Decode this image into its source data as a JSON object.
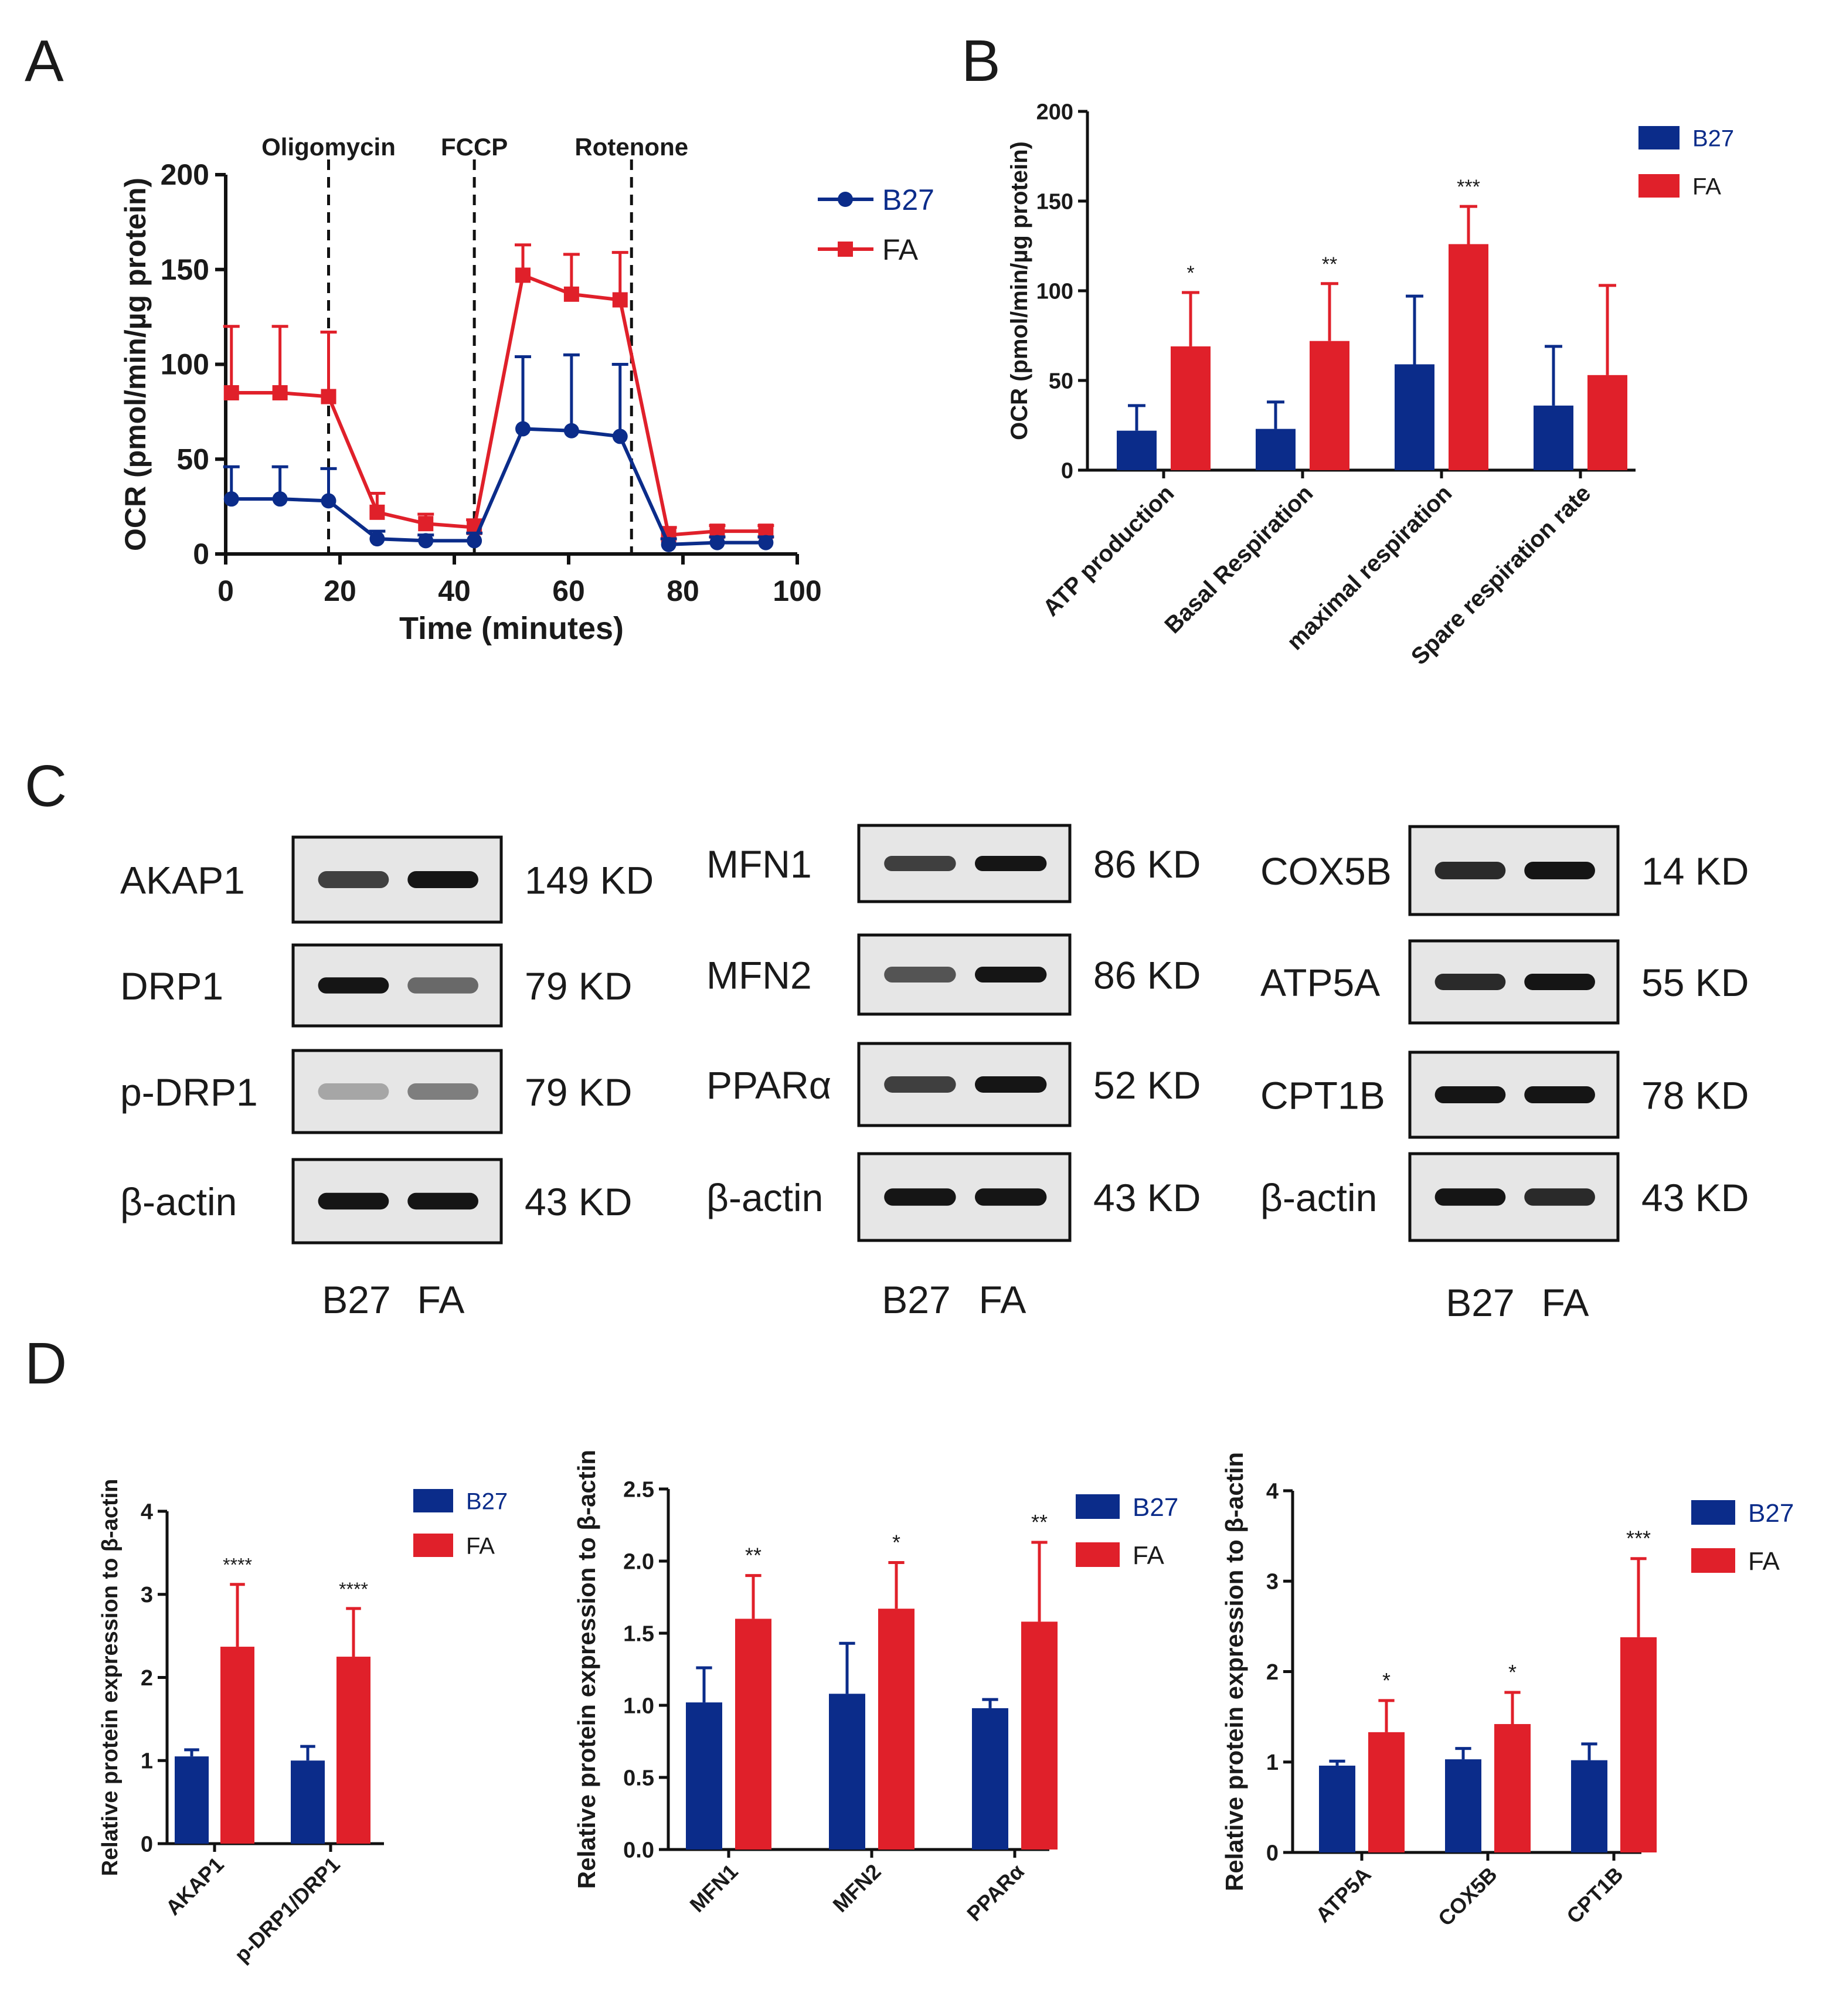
{
  "colors": {
    "b27": "#0b2c8a",
    "fa": "#e0202a",
    "axis": "#111111",
    "blot_bg": "#e6e6e6",
    "band": "#151515"
  },
  "panels": {
    "A": "A",
    "B": "B",
    "C": "C",
    "D": "D"
  },
  "chart_data": [
    {
      "id": "A",
      "type": "line",
      "ylabel": "OCR (pmol/min/µg  protein)",
      "xlabel": "Time (minutes)",
      "xlim": [
        0,
        100
      ],
      "ylim": [
        0,
        200
      ],
      "xticks": [
        "0",
        "20",
        "40",
        "60",
        "80",
        "100"
      ],
      "yticks": [
        "0",
        "50",
        "100",
        "150",
        "200"
      ],
      "annotations": [
        {
          "label": "Oligomycin",
          "x": 18
        },
        {
          "label": "FCCP",
          "x": 43.5
        },
        {
          "label": "Rotenone",
          "x": 71
        }
      ],
      "legend": [
        "B27",
        "FA"
      ],
      "series": [
        {
          "name": "B27",
          "x": [
            1,
            9.5,
            18,
            26.5,
            35,
            43.5,
            52,
            60.5,
            69,
            77.5,
            86,
            94.5
          ],
          "y": [
            29,
            29,
            28,
            8,
            7,
            7,
            66,
            65,
            62,
            5,
            6,
            6
          ],
          "err": [
            17,
            17,
            17,
            4,
            3,
            4,
            38,
            40,
            38,
            3,
            3,
            3
          ]
        },
        {
          "name": "FA",
          "x": [
            1,
            9.5,
            18,
            26.5,
            35,
            43.5,
            52,
            60.5,
            69,
            77.5,
            86,
            94.5
          ],
          "y": [
            85,
            85,
            83,
            22,
            16,
            14,
            147,
            137,
            134,
            10,
            12,
            12
          ],
          "err": [
            35,
            35,
            34,
            10,
            5,
            4,
            16,
            21,
            25,
            4,
            3,
            3
          ]
        }
      ]
    },
    {
      "id": "B",
      "type": "bar",
      "ylabel": "OCR (pmol/min/µg protein)",
      "ylim": [
        0,
        200
      ],
      "yticks": [
        "0",
        "50",
        "100",
        "150",
        "200"
      ],
      "categories": [
        "ATP production",
        "Basal Respiration",
        "maximal respiration",
        "Spare respiration rate"
      ],
      "legend": [
        "B27",
        "FA"
      ],
      "series": [
        {
          "name": "B27",
          "values": [
            22,
            23,
            59,
            36
          ],
          "err": [
            14,
            15,
            38,
            33
          ]
        },
        {
          "name": "FA",
          "values": [
            69,
            72,
            126,
            53
          ],
          "err": [
            30,
            32,
            21,
            50
          ]
        }
      ],
      "significance": [
        "*",
        "**",
        "***",
        ""
      ]
    },
    {
      "id": "D1",
      "type": "bar",
      "ylabel": "Relative protein expression to β-actin",
      "ylim": [
        0,
        4
      ],
      "yticks": [
        "0",
        "1",
        "2",
        "3",
        "4"
      ],
      "categories": [
        "AKAP1",
        "p-DRP1/DRP1"
      ],
      "legend": [
        "B27",
        "FA"
      ],
      "series": [
        {
          "name": "B27",
          "values": [
            1.05,
            1.0
          ],
          "err": [
            0.08,
            0.17
          ]
        },
        {
          "name": "FA",
          "values": [
            2.37,
            2.25
          ],
          "err": [
            0.75,
            0.58
          ]
        }
      ],
      "significance": [
        "****",
        "****"
      ]
    },
    {
      "id": "D2",
      "type": "bar",
      "ylabel": "Relative protein expression to β-actin",
      "ylim": [
        0,
        2.5
      ],
      "yticks": [
        "0.0",
        "0.5",
        "1.0",
        "1.5",
        "2.0",
        "2.5"
      ],
      "categories": [
        "MFN1",
        "MFN2",
        "PPARα"
      ],
      "legend": [
        "B27",
        "FA"
      ],
      "series": [
        {
          "name": "B27",
          "values": [
            1.02,
            1.08,
            0.98
          ],
          "err": [
            0.24,
            0.35,
            0.06
          ]
        },
        {
          "name": "FA",
          "values": [
            1.6,
            1.67,
            1.58
          ],
          "err": [
            0.3,
            0.32,
            0.55
          ]
        }
      ],
      "significance": [
        "**",
        "*",
        "**"
      ]
    },
    {
      "id": "D3",
      "type": "bar",
      "ylabel": "Relative protein expression to β-actin",
      "ylim": [
        0,
        4
      ],
      "yticks": [
        "0",
        "1",
        "2",
        "3",
        "4"
      ],
      "categories": [
        "ATP5A",
        "COX5B",
        "CPT1B"
      ],
      "legend": [
        "B27",
        "FA"
      ],
      "series": [
        {
          "name": "B27",
          "values": [
            0.96,
            1.03,
            1.02
          ],
          "err": [
            0.05,
            0.12,
            0.18
          ]
        },
        {
          "name": "FA",
          "values": [
            1.33,
            1.42,
            2.38
          ],
          "err": [
            0.35,
            0.35,
            0.87
          ]
        }
      ],
      "significance": [
        "*",
        "*",
        "***"
      ]
    }
  ],
  "blots": [
    {
      "id": "C1",
      "rows": [
        {
          "protein": "AKAP1",
          "size": "149 KD",
          "b27": 0.8,
          "fa": 1.0
        },
        {
          "protein": "DRP1",
          "size": "79 KD",
          "b27": 1.0,
          "fa": 0.6
        },
        {
          "protein": "p-DRP1",
          "size": "79 KD",
          "b27": 0.3,
          "fa": 0.5
        },
        {
          "protein": "β-actin",
          "size": "43 KD",
          "b27": 1.0,
          "fa": 1.0
        }
      ],
      "lanes": [
        "B27",
        "FA"
      ]
    },
    {
      "id": "C2",
      "rows": [
        {
          "protein": "MFN1",
          "size": "86 KD",
          "b27": 0.8,
          "fa": 1.0
        },
        {
          "protein": "MFN2",
          "size": "86 KD",
          "b27": 0.7,
          "fa": 1.0
        },
        {
          "protein": "PPARα",
          "size": "52 KD",
          "b27": 0.8,
          "fa": 1.0
        },
        {
          "protein": "β-actin",
          "size": "43 KD",
          "b27": 1.0,
          "fa": 1.0
        }
      ],
      "lanes": [
        "B27",
        "FA"
      ]
    },
    {
      "id": "C3",
      "rows": [
        {
          "protein": "COX5B",
          "size": "14 KD",
          "b27": 0.9,
          "fa": 1.0
        },
        {
          "protein": "ATP5A",
          "size": "55 KD",
          "b27": 0.9,
          "fa": 1.0
        },
        {
          "protein": "CPT1B",
          "size": "78 KD",
          "b27": 1.0,
          "fa": 1.0
        },
        {
          "protein": "β-actin",
          "size": "43 KD",
          "b27": 1.0,
          "fa": 0.9
        }
      ],
      "lanes": [
        "B27",
        "FA"
      ]
    }
  ]
}
